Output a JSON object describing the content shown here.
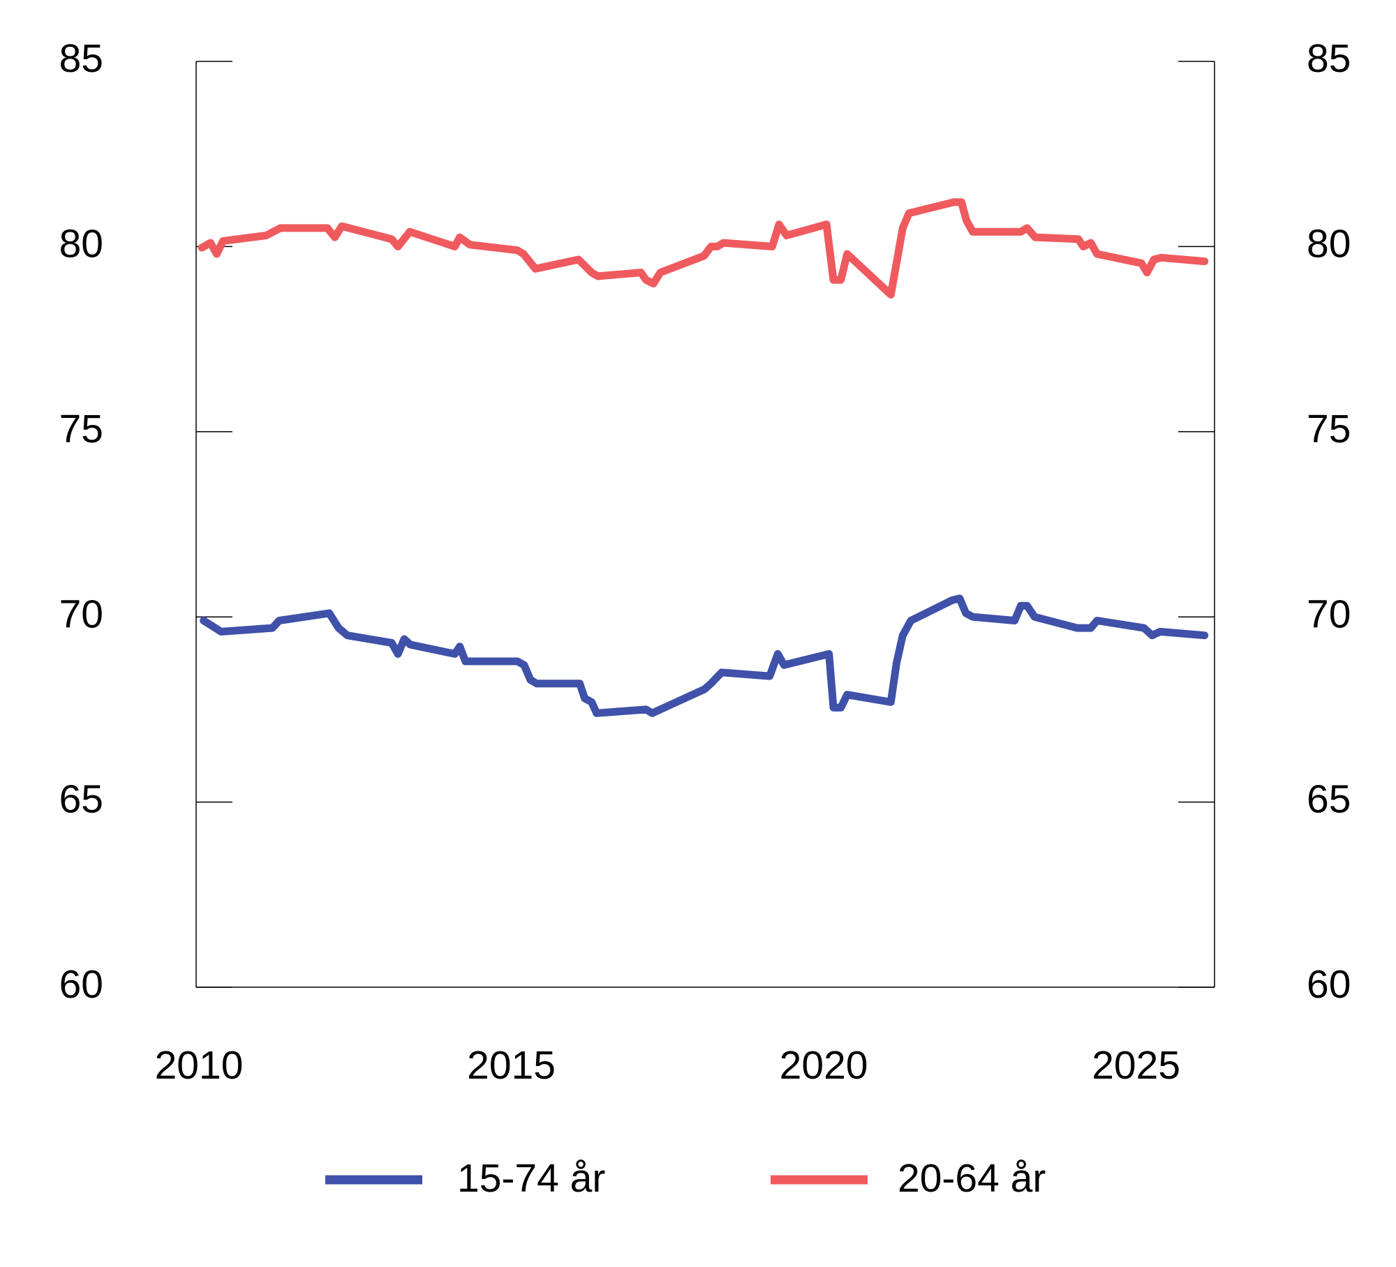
{
  "chart_data": {
    "type": "line",
    "xlim": [
      2010,
      2026.3
    ],
    "xticks": [
      2010,
      2015,
      2020,
      2025
    ],
    "ylim": [
      60,
      85
    ],
    "yticks": [
      60,
      65,
      70,
      75,
      80,
      85
    ],
    "y2lim": [
      60,
      85
    ],
    "y2ticks": [
      60,
      65,
      70,
      75,
      80,
      85
    ],
    "series": [
      {
        "name": "15-74 år",
        "color": "#3f51a8",
        "x": [
          2010.12,
          2010.4,
          2011.22,
          2011.33,
          2012.13,
          2012.28,
          2012.42,
          2013.13,
          2013.23,
          2013.33,
          2013.43,
          2014.14,
          2014.22,
          2014.31,
          2015.14,
          2015.25,
          2015.35,
          2015.45,
          2016.14,
          2016.22,
          2016.33,
          2016.41,
          2017.2,
          2017.3,
          2018.14,
          2018.24,
          2018.41,
          2019.18,
          2019.31,
          2019.41,
          2020.13,
          2020.2,
          2020.32,
          2020.42,
          2021.12,
          2021.21,
          2021.31,
          2021.44,
          2022.1,
          2022.22,
          2022.32,
          2022.43,
          2023.1,
          2023.2,
          2023.3,
          2023.42,
          2024.1,
          2024.32,
          2024.42,
          2025.17,
          2025.3,
          2025.43,
          2026.14
        ],
        "values": [
          69.9,
          69.6,
          69.7,
          69.9,
          70.1,
          69.7,
          69.5,
          69.3,
          69.0,
          69.4,
          69.25,
          69.0,
          69.2,
          68.8,
          68.8,
          68.7,
          68.3,
          68.2,
          68.2,
          67.8,
          67.7,
          67.4,
          67.5,
          67.4,
          68.05,
          68.2,
          68.5,
          68.4,
          69.0,
          68.7,
          69.0,
          67.55,
          67.55,
          67.9,
          67.7,
          68.75,
          69.5,
          69.9,
          70.45,
          70.5,
          70.1,
          70.0,
          69.9,
          70.3,
          70.3,
          70.0,
          69.7,
          69.7,
          69.9,
          69.7,
          69.5,
          69.6,
          69.5
        ]
      },
      {
        "name": "20-64 år",
        "color": "#ef5a5e",
        "x": [
          2010.09,
          2010.23,
          2010.33,
          2010.43,
          2011.12,
          2011.35,
          2012.1,
          2012.22,
          2012.33,
          2013.13,
          2013.23,
          2013.42,
          2014.14,
          2014.22,
          2014.38,
          2015.14,
          2015.24,
          2015.43,
          2016.12,
          2016.33,
          2016.43,
          2017.12,
          2017.2,
          2017.32,
          2017.43,
          2018.13,
          2018.24,
          2018.34,
          2018.44,
          2019.22,
          2019.33,
          2019.45,
          2020.09,
          2020.2,
          2020.32,
          2020.42,
          2021.12,
          2021.31,
          2021.41,
          2022.13,
          2022.25,
          2022.33,
          2022.43,
          2023.2,
          2023.3,
          2023.43,
          2024.12,
          2024.2,
          2024.32,
          2024.42,
          2025.13,
          2025.22,
          2025.33,
          2025.45,
          2026.14
        ],
        "values": [
          79.97,
          80.1,
          79.8,
          80.15,
          80.3,
          80.5,
          80.5,
          80.25,
          80.55,
          80.2,
          80.0,
          80.4,
          80.0,
          80.25,
          80.05,
          79.9,
          79.8,
          79.4,
          79.65,
          79.3,
          79.2,
          79.3,
          79.1,
          79.0,
          79.3,
          79.75,
          80.0,
          80.0,
          80.1,
          80.0,
          80.6,
          80.3,
          80.6,
          79.1,
          79.1,
          79.8,
          78.7,
          80.5,
          80.9,
          81.2,
          81.2,
          80.7,
          80.4,
          80.4,
          80.5,
          80.25,
          80.2,
          80.0,
          80.1,
          79.8,
          79.55,
          79.3,
          79.65,
          79.7,
          79.6
        ]
      }
    ]
  }
}
